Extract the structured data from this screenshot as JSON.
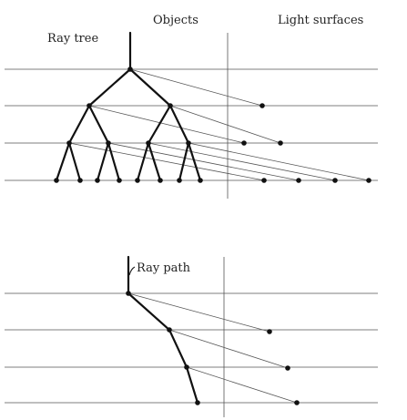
{
  "labels": {
    "objects": "Objects",
    "light_surfaces": "Light surfaces",
    "ray_tree": "Ray tree",
    "ray_path": "Ray path"
  },
  "colors": {
    "ink": "#111111",
    "thin_line": "#555555",
    "background": "#ffffff"
  }
}
